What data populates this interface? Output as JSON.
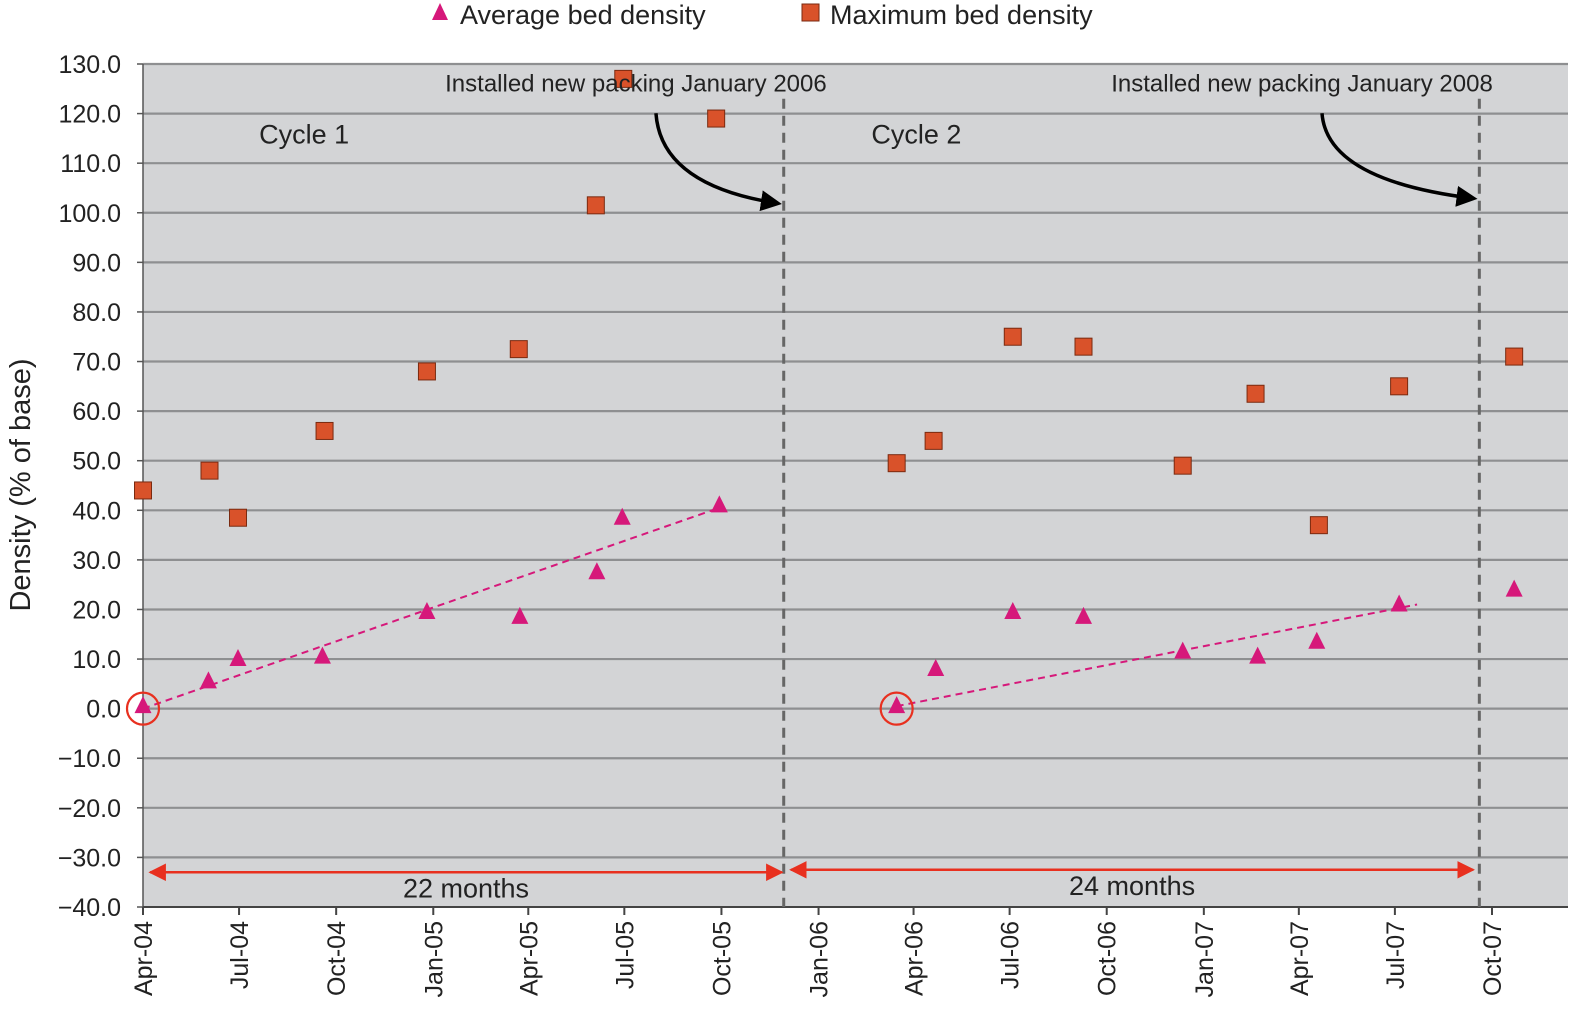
{
  "chart_data": {
    "type": "scatter",
    "title": "",
    "xlabel": "",
    "ylabel": "Density (% of base)",
    "ylim": [
      -40,
      130
    ],
    "yticks": [
      130,
      120,
      110,
      100,
      90,
      80,
      70,
      60,
      50,
      40,
      30,
      20,
      10,
      0,
      -10,
      -20,
      -30,
      -40
    ],
    "ytick_labels": [
      "130.0",
      "120.0",
      "110.0",
      "100.0",
      "90.0",
      "80.0",
      "70.0",
      "60.0",
      "50.0",
      "40.0",
      "30.0",
      "20.0",
      "10.0",
      "0.0",
      "−10.0",
      "−20.0",
      "−30.0",
      "−40.0"
    ],
    "xlim": [
      "2004-04-01",
      "2007-12-12"
    ],
    "xticks": [
      "2004-04-01",
      "2004-07-01",
      "2004-10-01",
      "2005-01-01",
      "2005-04-01",
      "2005-07-01",
      "2005-10-01",
      "2006-01-01",
      "2006-04-01",
      "2006-07-01",
      "2006-10-01",
      "2007-01-01",
      "2007-04-01",
      "2007-07-01",
      "2007-10-01"
    ],
    "xtick_labels": [
      "Apr-04",
      "Jul-04",
      "Oct-04",
      "Jan-05",
      "Apr-05",
      "Jul-05",
      "Oct-05",
      "Jan-06",
      "Apr-06",
      "Jul-06",
      "Oct-06",
      "Jan-07",
      "Apr-07",
      "Jul-07",
      "Oct-07"
    ],
    "grid": "horizontal",
    "legend_position": "top",
    "series": [
      {
        "name": "Average bed density",
        "marker": "triangle",
        "color": "#d6187a",
        "points": [
          {
            "x": "2004-04-01",
            "y": 0.5
          },
          {
            "x": "2004-06-02",
            "y": 5.5
          },
          {
            "x": "2004-06-30",
            "y": 10
          },
          {
            "x": "2004-09-18",
            "y": 10.5
          },
          {
            "x": "2004-12-26",
            "y": 19.5
          },
          {
            "x": "2005-03-24",
            "y": 18.5
          },
          {
            "x": "2005-06-05",
            "y": 27.5
          },
          {
            "x": "2005-06-29",
            "y": 38.5
          },
          {
            "x": "2005-09-29",
            "y": 41
          },
          {
            "x": "2006-03-16",
            "y": 0.5
          },
          {
            "x": "2006-04-22",
            "y": 8
          },
          {
            "x": "2006-07-04",
            "y": 19.5
          },
          {
            "x": "2006-09-09",
            "y": 18.5
          },
          {
            "x": "2006-12-12",
            "y": 11.5
          },
          {
            "x": "2007-02-21",
            "y": 10.5
          },
          {
            "x": "2007-04-18",
            "y": 13.5
          },
          {
            "x": "2007-07-05",
            "y": 21
          },
          {
            "x": "2007-10-22",
            "y": 24
          }
        ]
      },
      {
        "name": "Maximum bed density",
        "marker": "square",
        "color": "#d9522a",
        "points": [
          {
            "x": "2004-04-01",
            "y": 44
          },
          {
            "x": "2004-06-03",
            "y": 48
          },
          {
            "x": "2004-06-30",
            "y": 38.5
          },
          {
            "x": "2004-09-20",
            "y": 56
          },
          {
            "x": "2004-12-26",
            "y": 68
          },
          {
            "x": "2005-03-23",
            "y": 72.5
          },
          {
            "x": "2005-06-04",
            "y": 101.5
          },
          {
            "x": "2005-06-30",
            "y": 127
          },
          {
            "x": "2005-09-26",
            "y": 119
          },
          {
            "x": "2006-03-16",
            "y": 49.5
          },
          {
            "x": "2006-04-20",
            "y": 54
          },
          {
            "x": "2006-07-04",
            "y": 75
          },
          {
            "x": "2006-09-09",
            "y": 73
          },
          {
            "x": "2006-12-12",
            "y": 49
          },
          {
            "x": "2007-02-19",
            "y": 63.5
          },
          {
            "x": "2007-04-20",
            "y": 37
          },
          {
            "x": "2007-07-05",
            "y": 65
          },
          {
            "x": "2007-10-22",
            "y": 71
          }
        ]
      }
    ],
    "trendlines": [
      {
        "series": "Average bed density",
        "color": "#d6187a",
        "style": "dashed",
        "x": [
          "2004-04-01",
          "2005-09-29"
        ],
        "y": [
          0,
          40.5
        ]
      },
      {
        "series": "Average bed density",
        "color": "#d6187a",
        "style": "dashed",
        "x": [
          "2006-03-16",
          "2007-07-22"
        ],
        "y": [
          0.5,
          21
        ]
      }
    ],
    "highlighted_points": [
      {
        "x": "2004-04-01",
        "y": 0,
        "color": "#e8301f"
      },
      {
        "x": "2006-03-16",
        "y": 0,
        "color": "#e8301f"
      }
    ],
    "vertical_lines": [
      {
        "x": "2005-11-29",
        "color": "#666666",
        "style": "dashed"
      },
      {
        "x": "2007-09-19",
        "color": "#666666",
        "style": "dashed"
      }
    ],
    "annotations": [
      {
        "text": "Installed new packing January 2006",
        "x": "2005-07-12",
        "y": 124.5,
        "arrow_to": {
          "x": "2005-11-29",
          "y": 101.5
        }
      },
      {
        "text": "Installed new packing January 2008",
        "x": "2007-04-04",
        "y": 124.5,
        "arrow_to": {
          "x": "2007-09-19",
          "y": 102.5
        }
      }
    ],
    "cycle_labels": [
      {
        "text": "Cycle 1",
        "x": "2004-07-20",
        "y": 114
      },
      {
        "text": "Cycle 2",
        "x": "2006-02-20",
        "y": 114
      }
    ],
    "spans": [
      {
        "text": "22 months",
        "x0": "2004-04-04",
        "x1": "2005-12-01",
        "y": -33
      },
      {
        "text": "24 months",
        "x0": "2005-12-02",
        "x1": "2007-09-17",
        "y": -32.5
      }
    ]
  }
}
